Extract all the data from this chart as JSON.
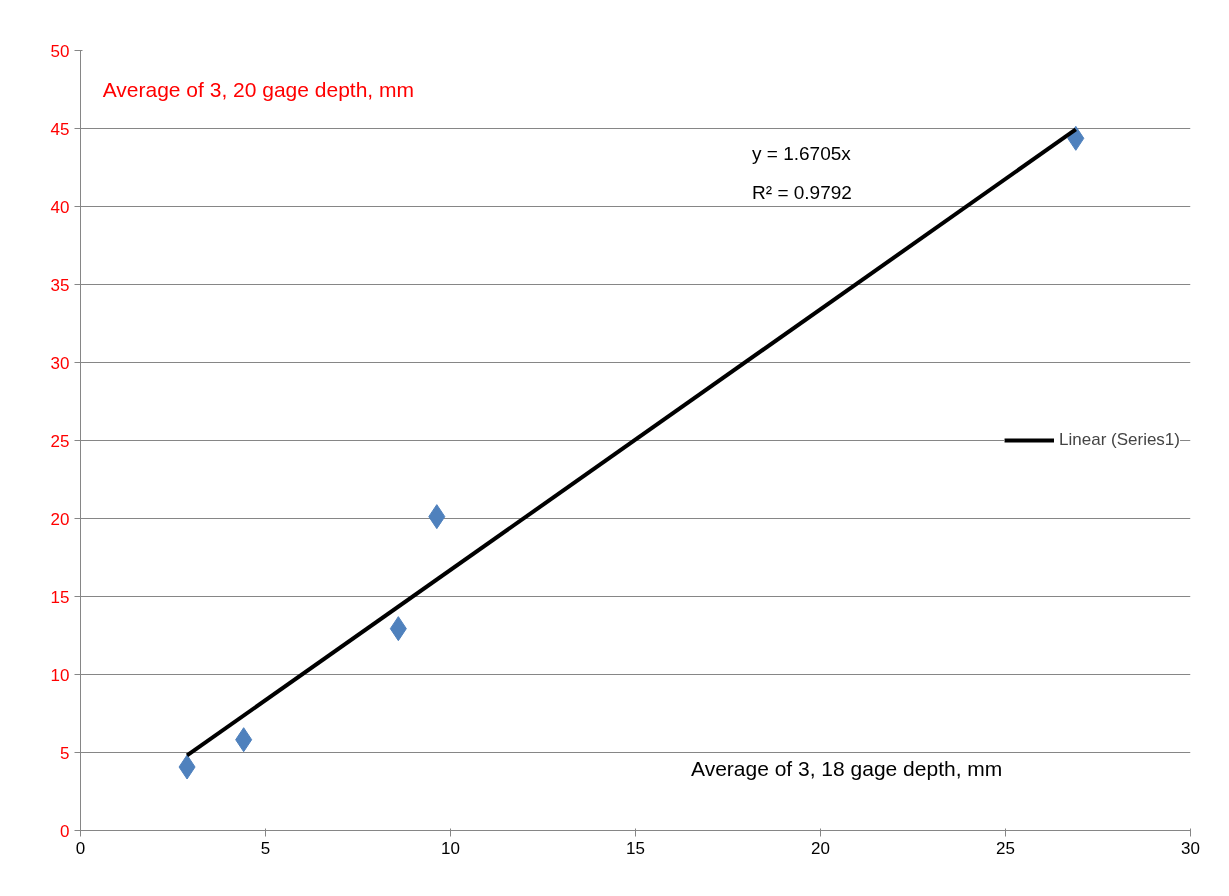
{
  "chart_data": {
    "type": "scatter",
    "xlabel": "Average of 3, 18 gage depth,  mm",
    "ylabel": "Average of 3, 20 gage depth, mm",
    "series": [
      {
        "color": "#4f81bd",
        "marker": "diamond",
        "x": [
          2.88,
          4.41,
          8.59,
          9.63,
          26.9
        ],
        "values": [
          4.07,
          5.82,
          12.94,
          20.12,
          44.37
        ]
      },
      {
        "type": "line",
        "name": "Linear (Series1)",
        "color": "#000000",
        "marker": "none",
        "x": [
          2.88,
          26.9
        ],
        "values": [
          4.81,
          44.94
        ]
      }
    ],
    "annotations": [
      "y = 1.6705x",
      "R² = 0.9792"
    ],
    "xlim": [
      0,
      30
    ],
    "xticks": [
      0,
      5,
      10,
      15,
      20,
      25,
      30
    ],
    "ylim": [
      0,
      50
    ],
    "yticks": [
      0,
      5,
      10,
      15,
      20,
      25,
      30,
      35,
      40,
      45,
      50
    ],
    "grid": "y",
    "legend": "right"
  }
}
